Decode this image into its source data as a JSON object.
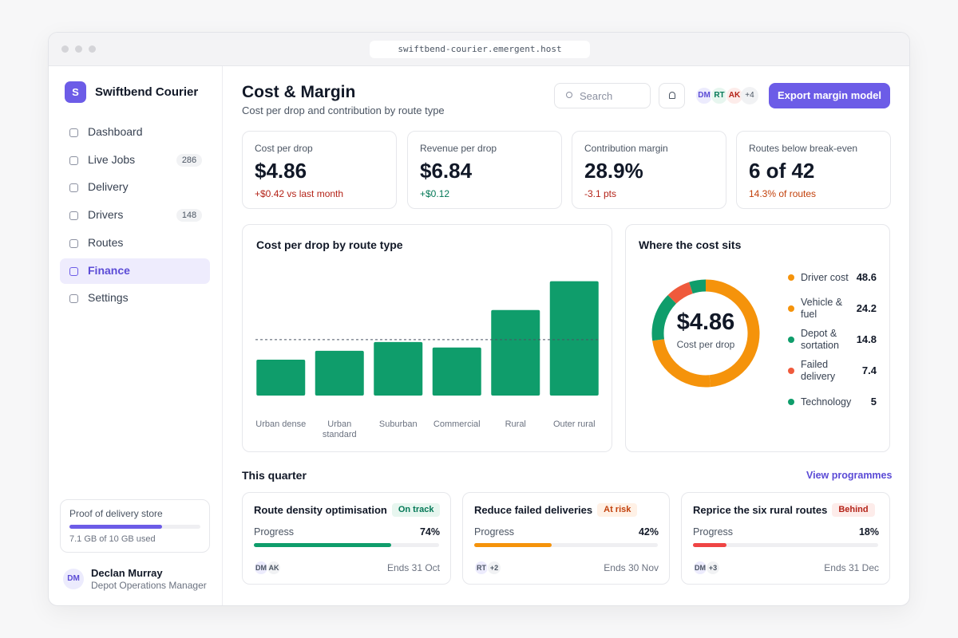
{
  "browser": {
    "url": "swiftbend-courier.emergent.host"
  },
  "sidebar": {
    "logo": "S",
    "brand": "Swiftbend Courier",
    "nav": [
      {
        "label": "Dashboard"
      },
      {
        "label": "Live Jobs",
        "badge": "286"
      },
      {
        "label": "Delivery"
      },
      {
        "label": "Drivers",
        "badge": "148"
      },
      {
        "label": "Routes"
      },
      {
        "label": "Finance",
        "active": true
      },
      {
        "label": "Settings"
      }
    ],
    "storage": {
      "title": "Proof of delivery store",
      "used": 7.1,
      "total": 10,
      "label": "7.1 GB of 10 GB used"
    },
    "user": {
      "initials": "DM",
      "name": "Declan Murray",
      "role": "Depot Operations Manager"
    }
  },
  "header": {
    "title": "Cost & Margin",
    "subtitle": "Cost per drop and contribution by route type",
    "search": "Search",
    "avatars": [
      "DM",
      "RT",
      "AK"
    ],
    "avatar_more": "+4",
    "button": "Export margin model"
  },
  "kpis": [
    {
      "label": "Cost per drop",
      "value": "$4.86",
      "delta": "+$0.42 vs last month",
      "tone": "bad"
    },
    {
      "label": "Revenue per drop",
      "value": "$6.84",
      "delta": "+$0.12",
      "tone": "good"
    },
    {
      "label": "Contribution margin",
      "value": "28.9%",
      "delta": "-3.1 pts",
      "tone": "bad"
    },
    {
      "label": "Routes below break-even",
      "value": "6 of 42",
      "delta": "14.3% of routes",
      "tone": "warn"
    }
  ],
  "chart_data": [
    {
      "type": "bar",
      "title": "Cost per drop by route type",
      "categories": [
        "Urban dense",
        "Urban standard",
        "Suburban",
        "Commercial",
        "Rural",
        "Outer rural"
      ],
      "values": [
        3.12,
        3.89,
        4.65,
        4.17,
        7.43,
        9.93
      ],
      "color": "#0f9d6b",
      "ylim": [
        0,
        11.5
      ],
      "reference_line": 4.86
    },
    {
      "type": "pie",
      "title": "Where the cost sits",
      "center_value": "$4.86",
      "center_label": "Cost per drop",
      "categories": [
        "Driver cost",
        "Vehicle & fuel",
        "Depot & sortation",
        "Failed delivery",
        "Technology"
      ],
      "values": [
        48.6,
        24.2,
        14.8,
        7.4,
        5.0
      ],
      "colors": [
        "#f5930b",
        "#f5930b",
        "#0f9d6b",
        "#ef5a3c",
        "#0f9d6b"
      ]
    }
  ],
  "quarter": {
    "title": "This quarter",
    "link": "View programmes",
    "programmes": [
      {
        "name": "Route density optimisation",
        "status": "On track",
        "tone": "good",
        "progress_label": "Progress",
        "progress": {
          "value": 74,
          "label": "74%"
        },
        "avatars": [
          "DM",
          "AK"
        ],
        "ends": "Ends 31 Oct"
      },
      {
        "name": "Reduce failed deliveries",
        "status": "At risk",
        "tone": "warn",
        "progress_label": "Progress",
        "progress": {
          "value": 42,
          "label": "42%"
        },
        "avatars": [
          "RT",
          "+2"
        ],
        "ends": "Ends 30 Nov"
      },
      {
        "name": "Reprice the six rural routes",
        "status": "Behind",
        "tone": "bad",
        "progress_label": "Progress",
        "progress": {
          "value": 18,
          "label": "18%"
        },
        "avatars": [
          "DM",
          "+3"
        ],
        "ends": "Ends 31 Dec"
      }
    ]
  }
}
